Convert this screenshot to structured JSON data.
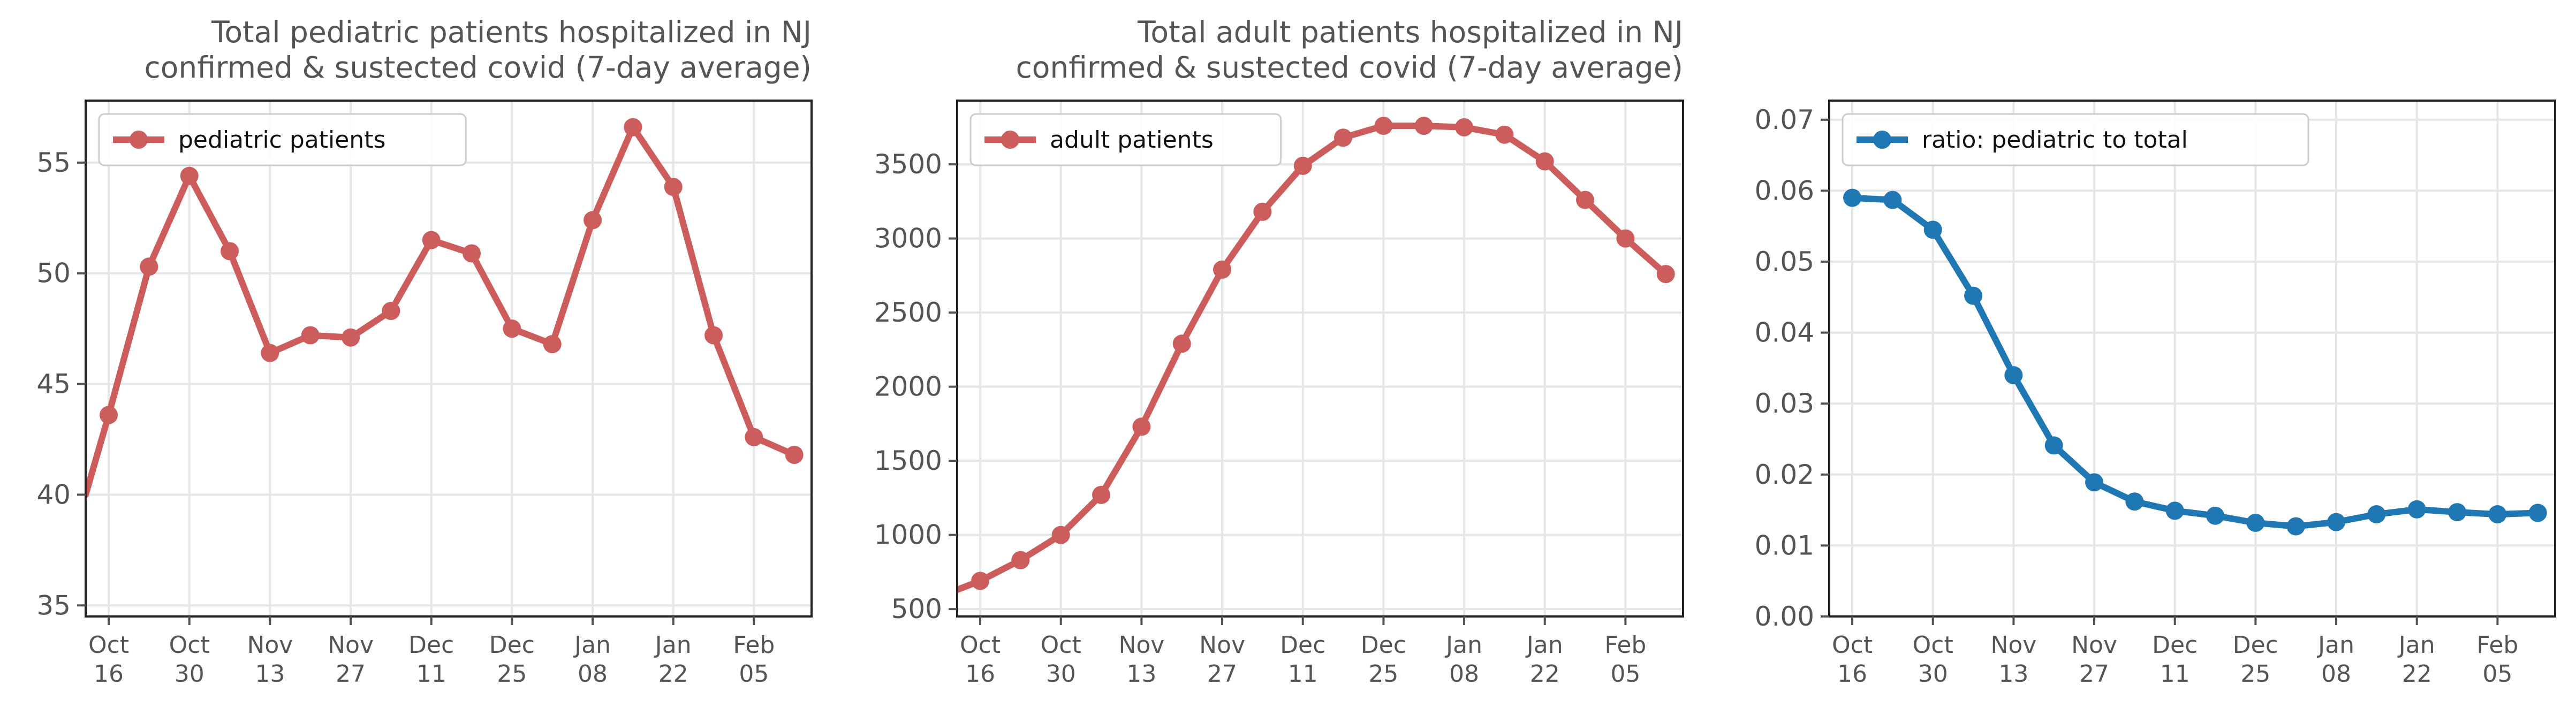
{
  "chart_data": [
    {
      "type": "line",
      "title_lines": [
        "Total pediatric patients hospitalized in NJ",
        "confirmed & sustected covid (7-day average)"
      ],
      "legend": "pediatric patients",
      "legend_position": "upper-left",
      "color": "#cd5c5c",
      "x_tick_labels": [
        [
          "Oct",
          "16"
        ],
        [
          "Oct",
          "30"
        ],
        [
          "Nov",
          "13"
        ],
        [
          "Nov",
          "27"
        ],
        [
          "Dec",
          "11"
        ],
        [
          "Dec",
          "25"
        ],
        [
          "Jan",
          "08"
        ],
        [
          "Jan",
          "22"
        ],
        [
          "Feb",
          "05"
        ]
      ],
      "x_ticks": [
        "2020-10-16",
        "2020-10-30",
        "2020-11-13",
        "2020-11-27",
        "2020-12-11",
        "2020-12-25",
        "2021-01-08",
        "2021-01-22",
        "2021-02-05"
      ],
      "xlim": [
        "2020-10-12",
        "2021-02-15"
      ],
      "y_ticks": [
        35,
        40,
        45,
        50,
        55
      ],
      "ylim": [
        34.5,
        57.8
      ],
      "y_decimals": 0,
      "grid": true,
      "x": [
        "2020-10-12",
        "2020-10-16",
        "2020-10-23",
        "2020-10-30",
        "2020-11-06",
        "2020-11-13",
        "2020-11-20",
        "2020-11-27",
        "2020-12-04",
        "2020-12-11",
        "2020-12-18",
        "2020-12-25",
        "2021-01-01",
        "2021-01-08",
        "2021-01-15",
        "2021-01-22",
        "2021-01-29",
        "2021-02-05",
        "2021-02-12"
      ],
      "series": [
        {
          "values": [
            40.0,
            43.6,
            50.3,
            54.4,
            51.0,
            46.4,
            47.2,
            47.1,
            48.3,
            51.5,
            50.9,
            47.5,
            46.8,
            52.4,
            56.6,
            53.9,
            47.2,
            42.6,
            41.8
          ]
        }
      ],
      "marker_start_index": 1
    },
    {
      "type": "line",
      "title_lines": [
        "Total adult patients hospitalized in NJ",
        "confirmed & sustected covid (7-day average)"
      ],
      "legend": "adult patients",
      "legend_position": "upper-left",
      "color": "#cd5c5c",
      "x_tick_labels": [
        [
          "Oct",
          "16"
        ],
        [
          "Oct",
          "30"
        ],
        [
          "Nov",
          "13"
        ],
        [
          "Nov",
          "27"
        ],
        [
          "Dec",
          "11"
        ],
        [
          "Dec",
          "25"
        ],
        [
          "Jan",
          "08"
        ],
        [
          "Jan",
          "22"
        ],
        [
          "Feb",
          "05"
        ]
      ],
      "x_ticks": [
        "2020-10-16",
        "2020-10-30",
        "2020-11-13",
        "2020-11-27",
        "2020-12-11",
        "2020-12-25",
        "2021-01-08",
        "2021-01-22",
        "2021-02-05"
      ],
      "xlim": [
        "2020-10-12",
        "2021-02-15"
      ],
      "y_ticks": [
        500,
        1000,
        1500,
        2000,
        2500,
        3000,
        3500
      ],
      "ylim": [
        450,
        3930
      ],
      "y_decimals": 0,
      "grid": true,
      "x": [
        "2020-10-12",
        "2020-10-16",
        "2020-10-23",
        "2020-10-30",
        "2020-11-06",
        "2020-11-13",
        "2020-11-20",
        "2020-11-27",
        "2020-12-04",
        "2020-12-11",
        "2020-12-18",
        "2020-12-25",
        "2021-01-01",
        "2021-01-08",
        "2021-01-15",
        "2021-01-22",
        "2021-01-29",
        "2021-02-05",
        "2021-02-12"
      ],
      "series": [
        {
          "values": [
            630,
            690,
            830,
            1000,
            1270,
            1730,
            2290,
            2790,
            3180,
            3490,
            3680,
            3760,
            3760,
            3750,
            3700,
            3520,
            3260,
            3000,
            2760
          ]
        }
      ],
      "marker_start_index": 1
    },
    {
      "type": "line",
      "title_lines": [],
      "legend": "ratio: pediatric to total",
      "legend_position": "upper-left",
      "color": "#1f77b4",
      "x_tick_labels": [
        [
          "Oct",
          "16"
        ],
        [
          "Oct",
          "30"
        ],
        [
          "Nov",
          "13"
        ],
        [
          "Nov",
          "27"
        ],
        [
          "Dec",
          "11"
        ],
        [
          "Dec",
          "25"
        ],
        [
          "Jan",
          "08"
        ],
        [
          "Jan",
          "22"
        ],
        [
          "Feb",
          "05"
        ]
      ],
      "x_ticks": [
        "2020-10-16",
        "2020-10-30",
        "2020-11-13",
        "2020-11-27",
        "2020-12-11",
        "2020-12-25",
        "2021-01-08",
        "2021-01-22",
        "2021-02-05"
      ],
      "xlim": [
        "2020-10-12",
        "2021-02-15"
      ],
      "y_ticks": [
        0.0,
        0.01,
        0.02,
        0.03,
        0.04,
        0.05,
        0.06,
        0.07
      ],
      "ylim": [
        0,
        0.0727
      ],
      "y_decimals": 2,
      "grid": true,
      "x": [
        "2020-10-16",
        "2020-10-23",
        "2020-10-30",
        "2020-11-06",
        "2020-11-13",
        "2020-11-20",
        "2020-11-27",
        "2020-12-04",
        "2020-12-11",
        "2020-12-18",
        "2020-12-25",
        "2021-01-01",
        "2021-01-08",
        "2021-01-15",
        "2021-01-22",
        "2021-01-29",
        "2021-02-05",
        "2021-02-12"
      ],
      "series": [
        {
          "values": [
            0.059,
            0.0587,
            0.0545,
            0.0452,
            0.034,
            0.0241,
            0.0189,
            0.0162,
            0.0149,
            0.0142,
            0.0132,
            0.0127,
            0.0133,
            0.0144,
            0.0151,
            0.0147,
            0.0144,
            0.0146
          ]
        }
      ],
      "marker_start_index": 0
    }
  ]
}
